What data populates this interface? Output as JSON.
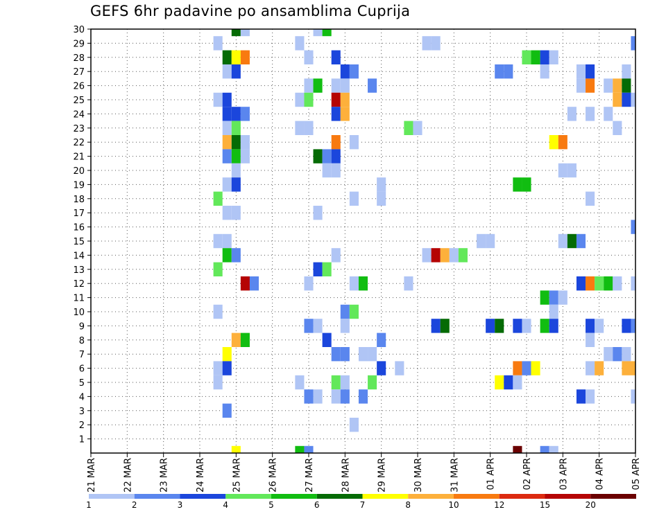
{
  "chart_data": {
    "type": "heatmap",
    "title": "GEFS 6hr padavine po ansamblima Cuprija",
    "xlabel": "",
    "ylabel": "",
    "x_ticks": [
      "21 MAR",
      "22 MAR",
      "23 MAR",
      "24 MAR",
      "25 MAR",
      "26 MAR",
      "27 MAR",
      "28 MAR",
      "29 MAR",
      "30 MAR",
      "31 MAR",
      "01 APR",
      "02 APR",
      "03 APR",
      "04 APR",
      "05 APR"
    ],
    "xlim_steps": [
      0,
      60
    ],
    "step_hours": 6,
    "y_ticks": [
      1,
      2,
      3,
      4,
      5,
      6,
      7,
      8,
      9,
      10,
      11,
      12,
      13,
      14,
      15,
      16,
      17,
      18,
      19,
      20,
      21,
      22,
      23,
      24,
      25,
      26,
      27,
      28,
      29,
      30
    ],
    "ylim": [
      0,
      30
    ],
    "grid": true,
    "legend": {
      "placement": "bottom",
      "colors": [
        "#b0c5f5",
        "#5a86ee",
        "#1b46dc",
        "#62e85a",
        "#11bd11",
        "#056b05",
        "#ffff00",
        "#fdb03b",
        "#f87a10",
        "#dc2a10",
        "#b50404",
        "#6b0000"
      ],
      "labels": [
        "1",
        "2",
        "3",
        "4",
        "5",
        "6",
        "7",
        "8",
        "10",
        "12",
        "15",
        "20"
      ]
    },
    "cells": [
      [
        30,
        16,
        6
      ],
      [
        30,
        17,
        1
      ],
      [
        30,
        25,
        1
      ],
      [
        30,
        26,
        5
      ],
      [
        29,
        14,
        1
      ],
      [
        29,
        23,
        1
      ],
      [
        29,
        37,
        1
      ],
      [
        29,
        38,
        1
      ],
      [
        29,
        60,
        2
      ],
      [
        28,
        15,
        6
      ],
      [
        28,
        16,
        7
      ],
      [
        28,
        17,
        9
      ],
      [
        28,
        24,
        1
      ],
      [
        28,
        27,
        3
      ],
      [
        28,
        48,
        4
      ],
      [
        28,
        49,
        5
      ],
      [
        28,
        50,
        3
      ],
      [
        28,
        51,
        1
      ],
      [
        27,
        15,
        1
      ],
      [
        27,
        16,
        3
      ],
      [
        27,
        28,
        3
      ],
      [
        27,
        29,
        2
      ],
      [
        27,
        45,
        2
      ],
      [
        27,
        46,
        2
      ],
      [
        27,
        50,
        1
      ],
      [
        27,
        54,
        1
      ],
      [
        27,
        55,
        3
      ],
      [
        27,
        59,
        1
      ],
      [
        26,
        24,
        1
      ],
      [
        26,
        25,
        5
      ],
      [
        26,
        27,
        1
      ],
      [
        26,
        28,
        1
      ],
      [
        26,
        31,
        2
      ],
      [
        26,
        54,
        1
      ],
      [
        26,
        55,
        9
      ],
      [
        26,
        57,
        1
      ],
      [
        26,
        58,
        8
      ],
      [
        26,
        59,
        6
      ],
      [
        25,
        14,
        1
      ],
      [
        25,
        15,
        3
      ],
      [
        25,
        23,
        1
      ],
      [
        25,
        24,
        4
      ],
      [
        25,
        27,
        11
      ],
      [
        25,
        28,
        8
      ],
      [
        25,
        58,
        8
      ],
      [
        25,
        59,
        3
      ],
      [
        25,
        60,
        1
      ],
      [
        24,
        15,
        3
      ],
      [
        24,
        16,
        3
      ],
      [
        24,
        17,
        2
      ],
      [
        24,
        27,
        3
      ],
      [
        24,
        28,
        8
      ],
      [
        24,
        53,
        1
      ],
      [
        24,
        55,
        1
      ],
      [
        24,
        57,
        1
      ],
      [
        23,
        15,
        1
      ],
      [
        23,
        16,
        4
      ],
      [
        23,
        23,
        1
      ],
      [
        23,
        24,
        1
      ],
      [
        23,
        35,
        4
      ],
      [
        23,
        36,
        1
      ],
      [
        23,
        58,
        1
      ],
      [
        22,
        15,
        8
      ],
      [
        22,
        16,
        6
      ],
      [
        22,
        17,
        1
      ],
      [
        22,
        27,
        9
      ],
      [
        22,
        29,
        1
      ],
      [
        22,
        51,
        7
      ],
      [
        22,
        52,
        9
      ],
      [
        21,
        15,
        2
      ],
      [
        21,
        16,
        5
      ],
      [
        21,
        17,
        1
      ],
      [
        21,
        25,
        6
      ],
      [
        21,
        26,
        2
      ],
      [
        21,
        27,
        3
      ],
      [
        20,
        16,
        1
      ],
      [
        20,
        26,
        1
      ],
      [
        20,
        27,
        1
      ],
      [
        20,
        52,
        1
      ],
      [
        20,
        53,
        1
      ],
      [
        19,
        15,
        1
      ],
      [
        19,
        16,
        3
      ],
      [
        19,
        32,
        1
      ],
      [
        19,
        47,
        5
      ],
      [
        19,
        48,
        5
      ],
      [
        18,
        14,
        4
      ],
      [
        18,
        29,
        1
      ],
      [
        18,
        32,
        1
      ],
      [
        18,
        55,
        1
      ],
      [
        17,
        15,
        1
      ],
      [
        17,
        16,
        1
      ],
      [
        17,
        25,
        1
      ],
      [
        16,
        60,
        2
      ],
      [
        15,
        14,
        1
      ],
      [
        15,
        15,
        1
      ],
      [
        15,
        43,
        1
      ],
      [
        15,
        44,
        1
      ],
      [
        15,
        52,
        1
      ],
      [
        15,
        53,
        6
      ],
      [
        15,
        54,
        2
      ],
      [
        14,
        15,
        5
      ],
      [
        14,
        16,
        2
      ],
      [
        14,
        27,
        1
      ],
      [
        14,
        37,
        1
      ],
      [
        14,
        38,
        11
      ],
      [
        14,
        39,
        8
      ],
      [
        14,
        40,
        1
      ],
      [
        14,
        41,
        4
      ],
      [
        13,
        14,
        4
      ],
      [
        13,
        25,
        3
      ],
      [
        13,
        26,
        4
      ],
      [
        12,
        17,
        11
      ],
      [
        12,
        18,
        2
      ],
      [
        12,
        24,
        1
      ],
      [
        12,
        29,
        1
      ],
      [
        12,
        30,
        5
      ],
      [
        12,
        35,
        1
      ],
      [
        12,
        54,
        3
      ],
      [
        12,
        55,
        9
      ],
      [
        12,
        56,
        4
      ],
      [
        12,
        57,
        5
      ],
      [
        12,
        58,
        1
      ],
      [
        12,
        60,
        1
      ],
      [
        11,
        50,
        5
      ],
      [
        11,
        51,
        2
      ],
      [
        11,
        52,
        1
      ],
      [
        10,
        14,
        1
      ],
      [
        10,
        28,
        2
      ],
      [
        10,
        29,
        4
      ],
      [
        10,
        51,
        1
      ],
      [
        9,
        24,
        2
      ],
      [
        9,
        25,
        1
      ],
      [
        9,
        28,
        1
      ],
      [
        9,
        38,
        3
      ],
      [
        9,
        39,
        6
      ],
      [
        9,
        44,
        3
      ],
      [
        9,
        45,
        6
      ],
      [
        9,
        47,
        3
      ],
      [
        9,
        48,
        1
      ],
      [
        9,
        50,
        5
      ],
      [
        9,
        51,
        3
      ],
      [
        9,
        55,
        3
      ],
      [
        9,
        56,
        1
      ],
      [
        9,
        59,
        3
      ],
      [
        9,
        60,
        2
      ],
      [
        8,
        16,
        8
      ],
      [
        8,
        17,
        5
      ],
      [
        8,
        26,
        3
      ],
      [
        8,
        32,
        2
      ],
      [
        8,
        55,
        1
      ],
      [
        7,
        15,
        7
      ],
      [
        7,
        27,
        2
      ],
      [
        7,
        28,
        2
      ],
      [
        7,
        30,
        1
      ],
      [
        7,
        31,
        1
      ],
      [
        7,
        57,
        1
      ],
      [
        7,
        58,
        2
      ],
      [
        7,
        59,
        1
      ],
      [
        6,
        14,
        1
      ],
      [
        6,
        15,
        3
      ],
      [
        6,
        32,
        3
      ],
      [
        6,
        34,
        1
      ],
      [
        6,
        47,
        9
      ],
      [
        6,
        48,
        2
      ],
      [
        6,
        49,
        7
      ],
      [
        6,
        55,
        1
      ],
      [
        6,
        56,
        8
      ],
      [
        6,
        59,
        8
      ],
      [
        6,
        60,
        8
      ],
      [
        5,
        14,
        1
      ],
      [
        5,
        23,
        1
      ],
      [
        5,
        27,
        4
      ],
      [
        5,
        28,
        1
      ],
      [
        5,
        31,
        4
      ],
      [
        5,
        45,
        7
      ],
      [
        5,
        46,
        3
      ],
      [
        5,
        47,
        1
      ],
      [
        4,
        24,
        2
      ],
      [
        4,
        25,
        1
      ],
      [
        4,
        27,
        1
      ],
      [
        4,
        28,
        2
      ],
      [
        4,
        30,
        2
      ],
      [
        4,
        54,
        3
      ],
      [
        4,
        55,
        1
      ],
      [
        4,
        60,
        1
      ],
      [
        3,
        15,
        2
      ],
      [
        2,
        29,
        1
      ],
      [
        0,
        16,
        7
      ],
      [
        0,
        23,
        5
      ],
      [
        0,
        24,
        2
      ],
      [
        0,
        47,
        12
      ],
      [
        0,
        50,
        2
      ],
      [
        0,
        51,
        1
      ]
    ]
  }
}
